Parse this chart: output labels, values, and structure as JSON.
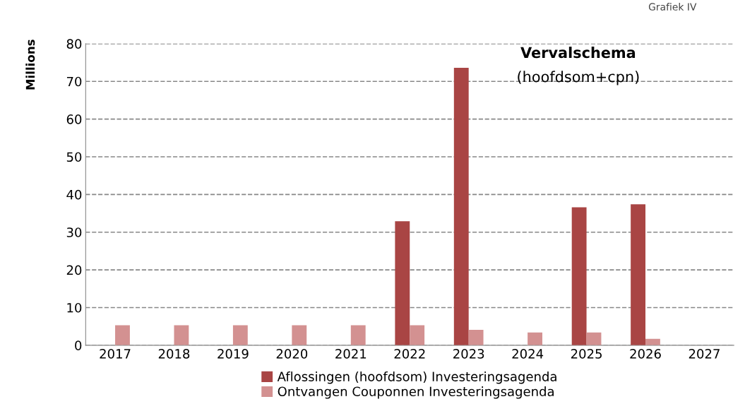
{
  "chart_data": {
    "type": "bar",
    "title": "Vervalschema",
    "subtitle": "(hoofdsom+cpn)",
    "ylabel": "Millions",
    "annotations": [
      "Grafiek IV"
    ],
    "categories": [
      "2017",
      "2018",
      "2019",
      "2020",
      "2021",
      "2022",
      "2023",
      "2024",
      "2025",
      "2026",
      "2027"
    ],
    "series": [
      {
        "name": "Aflossingen (hoofdsom) Investeringsagenda",
        "color": "#a94544",
        "values": [
          null,
          null,
          null,
          null,
          null,
          32.9,
          73.6,
          null,
          36.6,
          37.4,
          null
        ]
      },
      {
        "name": "Ontvangen Couponnen Investeringsagenda",
        "color": "#d39191",
        "values": [
          5.3,
          5.3,
          5.3,
          5.3,
          5.3,
          5.3,
          4.1,
          3.4,
          3.4,
          1.7,
          null
        ]
      }
    ],
    "ylim": [
      0,
      80
    ],
    "yticks": [
      0,
      10,
      20,
      30,
      40,
      50,
      60,
      70,
      80
    ],
    "grid": "y",
    "line_style": "dashed",
    "legend": "bottom"
  }
}
